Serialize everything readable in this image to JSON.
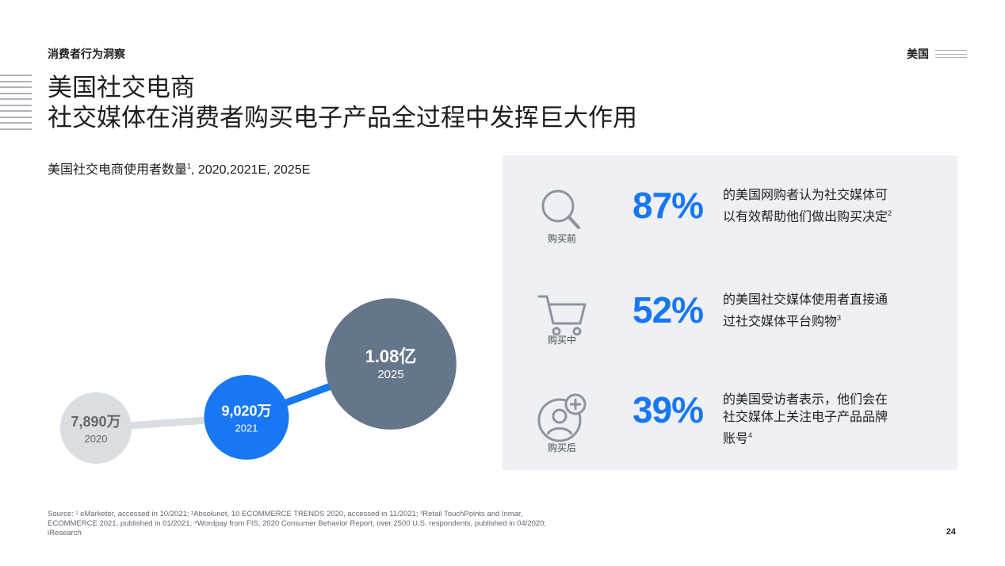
{
  "header": {
    "section": "消费者行为洞察",
    "region": "美国"
  },
  "title": {
    "line1": "美国社交电商",
    "line2": "社交媒体在消费者购买电子产品全过程中发挥巨大作用"
  },
  "chart_data": {
    "type": "bubble",
    "title": "美国社交电商使用者数量",
    "title_sup": "1",
    "title_suffix": ", 2020,2021E, 2025E",
    "points": [
      {
        "year": "2020",
        "value": 78900000,
        "label": "7,890万",
        "color": "#dadde1",
        "text_color": "#65676b"
      },
      {
        "year": "2021",
        "value": 90200000,
        "label": "9,020万",
        "color": "#1877f2",
        "text_color": "#ffffff"
      },
      {
        "year": "2025",
        "value": 108000000,
        "label": "1.08亿",
        "color": "#65758a",
        "text_color": "#ffffff"
      }
    ],
    "connector_colors": [
      "#dadde1",
      "#1877f2"
    ]
  },
  "stats": [
    {
      "stage": "购买前",
      "icon": "magnifier-icon",
      "pct": "87%",
      "lines": [
        "的美国网购者认为社交媒体可",
        "以有效帮助他们做出购买决定"
      ],
      "sup": "2"
    },
    {
      "stage": "购买中",
      "icon": "shopping-cart-icon",
      "pct": "52%",
      "lines": [
        "的美国社交媒体使用者直接通",
        "过社交媒体平台购物"
      ],
      "sup": "3"
    },
    {
      "stage": "购买后",
      "icon": "add-user-icon",
      "pct": "39%",
      "lines": [
        "的美国受访者表示，他们会在",
        "社交媒体上关注电子产品品牌",
        "账号"
      ],
      "sup": "4"
    }
  ],
  "source": {
    "line1": "Source: ¹ eMarketer, accessed in 10/2021; ²Absolunet, 10 ECOMMERCE TRENDS 2020, accessed in 11/2021; ³Retail TouchPoints and Inmar,",
    "line2": "ECOMMERCE 2021, published in 01/2021; ⁴Wordpay from FIS, 2020 Consumer Behavior Report, over 2500 U.S. respondents, published in 04/2020;",
    "line3": "iResearch"
  },
  "page_number": "24",
  "colors": {
    "accent": "#1877f2",
    "panel": "#eef0f4",
    "dark_bubble": "#65758a",
    "light_bubble": "#dadde1"
  }
}
